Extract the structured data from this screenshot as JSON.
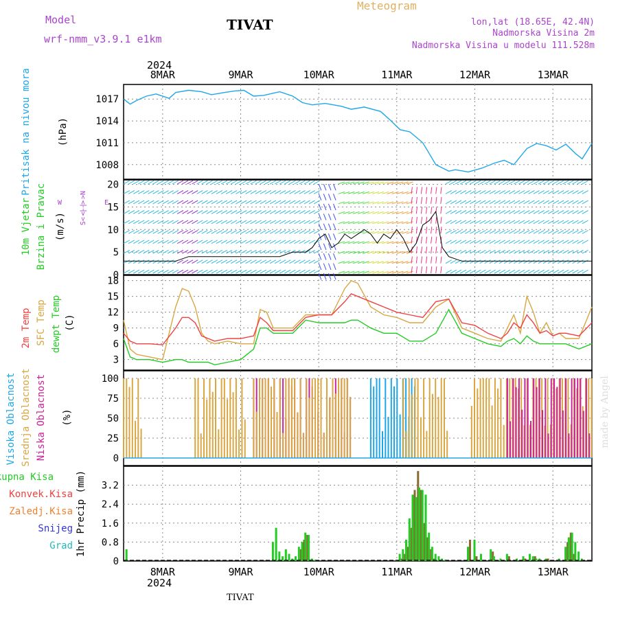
{
  "header": {
    "model_label": "Model",
    "model_name": "wrf-nmm_v3.9.1 e1km",
    "station": "TIVAT",
    "meteogram": "Meteogram",
    "lonlat": "lon,lat (18.65E, 42.4N)",
    "elevation": "Nadmorska Visina 2m",
    "model_elevation": "Nadmorska Visina u modelu 111.528m",
    "footer_station": "TIVAT",
    "credit": "made by Angel"
  },
  "time_axis": {
    "year": "2024",
    "days": [
      "8MAR",
      "9MAR",
      "10MAR",
      "11MAR",
      "12MAR",
      "13MAR"
    ],
    "range_hours": [
      0,
      144
    ]
  },
  "colors": {
    "pressure": "#1ea6e8",
    "temp2m": "#f04040",
    "sfc": "#d9a640",
    "dewpt": "#22cc22",
    "high_cloud": "#1ea6e8",
    "mid_cloud": "#d9a640",
    "low_cloud": "#cc2299",
    "total_precip": "#22cc22",
    "conv_precip": "#f04040",
    "snow": "#3333dd",
    "hail": "#22bbbb",
    "legend_label": "#aa44cc"
  },
  "panels": {
    "pressure": {
      "label_main": "Pritisak na nivou mora",
      "label_unit": "(hPa)",
      "ticks": [
        "1017",
        "1014",
        "1011",
        "1008"
      ]
    },
    "wind": {
      "label_main": "10m Vjetar",
      "label_sub": "Brzina i Pravac",
      "label_unit": "(m/s)",
      "ticks": [
        "20",
        "15",
        "10",
        "5",
        "0"
      ],
      "compass": {
        "w": "W",
        "n": "<-|->N",
        "e": "E",
        "s": "S<-|->"
      }
    },
    "temperature": {
      "label_2m": "2m Temp",
      "label_sfc": "SFC Temp",
      "label_dew": "dewpt Temp",
      "label_unit": "(C)",
      "ticks": [
        "18",
        "15",
        "12",
        "9",
        "6",
        "3"
      ]
    },
    "clouds": {
      "label_high": "Visoka Oblacnost",
      "label_mid": "Srednja Oblacnost",
      "label_low": "Niska Oblacnost",
      "label_unit": "(%)",
      "ticks": [
        "100",
        "75",
        "50",
        "25",
        "0"
      ]
    },
    "precip": {
      "label_unit": "1hr Precip (mm)",
      "ticks": [
        "3.2",
        "2.4",
        "1.6",
        "0.8",
        "0"
      ],
      "legend": [
        "Ukupna Kisa",
        "Konvek.Kisa",
        "Zaledj.Kisa",
        "Snijeg",
        "Grad"
      ]
    }
  },
  "chart_data": [
    {
      "type": "line",
      "name": "pressure",
      "ylabel": "Pritisak na nivou mora (hPa)",
      "ylim": [
        1006,
        1019
      ],
      "x_hours": [
        0,
        2,
        4,
        7,
        10,
        14,
        16,
        20,
        24,
        27,
        31,
        34,
        37,
        40,
        43,
        48,
        52,
        55,
        58,
        62,
        67,
        70,
        74,
        79,
        82,
        85,
        88,
        92,
        94,
        96,
        100,
        102,
        106,
        110,
        114,
        117,
        120,
        124,
        127,
        130,
        133,
        136,
        139,
        141,
        144
      ],
      "series": [
        {
          "values": [
            1017.0,
            1016.3,
            1016.8,
            1017.4,
            1017.7,
            1017.1,
            1017.9,
            1018.2,
            1018.0,
            1017.6,
            1017.9,
            1018.1,
            1018.2,
            1017.4,
            1017.5,
            1018.0,
            1017.4,
            1016.5,
            1016.2,
            1016.4,
            1016.0,
            1015.6,
            1015.9,
            1015.3,
            1014.1,
            1012.8,
            1012.5,
            1011.0,
            1009.5,
            1008.0,
            1007.1,
            1007.3,
            1007.0,
            1007.5,
            1008.2,
            1008.6,
            1008.0,
            1010.2,
            1010.9,
            1010.6,
            1010.0,
            1010.8,
            1009.5,
            1008.8,
            1010.9
          ]
        }
      ]
    },
    {
      "type": "line",
      "name": "wind_speed",
      "ylabel": "10m Vjetar (m/s)",
      "ylim": [
        0,
        21
      ],
      "x_hours": [
        0,
        4,
        8,
        12,
        16,
        20,
        24,
        28,
        32,
        36,
        40,
        44,
        48,
        52,
        56,
        58,
        60,
        62,
        64,
        66,
        68,
        70,
        72,
        74,
        76,
        78,
        80,
        82,
        84,
        86,
        88,
        90,
        92,
        94,
        96,
        98,
        100,
        104,
        108,
        112,
        116,
        120,
        124,
        128,
        132,
        136,
        140,
        144
      ],
      "series": [
        {
          "values": [
            3,
            3,
            3,
            3,
            3,
            4,
            4,
            4,
            4,
            4,
            4,
            4,
            4,
            5,
            5,
            6,
            8,
            9,
            6,
            7,
            9,
            8,
            9,
            10,
            9,
            7,
            9,
            8,
            10,
            8,
            5,
            7,
            11,
            12,
            14,
            6,
            4,
            3,
            3,
            3,
            3,
            3,
            3,
            3,
            3,
            3,
            3,
            3
          ]
        }
      ]
    },
    {
      "type": "line",
      "name": "temperature",
      "ylabel": "Temp (C)",
      "ylim": [
        1,
        19
      ],
      "x_hours": [
        0,
        2,
        4,
        8,
        12,
        16,
        18,
        20,
        22,
        24,
        26,
        28,
        32,
        36,
        40,
        42,
        44,
        46,
        48,
        52,
        56,
        60,
        64,
        68,
        70,
        72,
        76,
        80,
        84,
        88,
        92,
        96,
        100,
        104,
        108,
        112,
        116,
        118,
        120,
        122,
        124,
        126,
        128,
        130,
        132,
        134,
        136,
        140,
        144
      ],
      "series": [
        {
          "name": "2m Temp",
          "values": [
            8,
            6.5,
            6,
            6,
            5.8,
            9,
            11,
            11,
            10,
            7.5,
            7,
            6.5,
            7,
            7,
            7.5,
            11,
            10,
            8.5,
            8.5,
            8.5,
            11,
            11.5,
            11.5,
            14,
            15.5,
            15,
            14,
            13,
            12,
            11.5,
            11,
            14,
            14.5,
            10,
            9.5,
            8,
            7,
            8,
            10,
            9,
            11.5,
            10,
            8,
            8.5,
            7.5,
            8,
            8,
            7.5,
            10
          ]
        },
        {
          "name": "SFC Temp",
          "values": [
            10.5,
            5,
            4,
            3.5,
            3,
            13,
            16.5,
            16,
            13,
            8,
            6.5,
            6,
            6.5,
            6,
            6,
            12.5,
            12,
            9,
            9,
            9,
            11.5,
            11.5,
            11.5,
            16.5,
            18,
            17.5,
            13,
            11.5,
            11,
            10,
            10,
            13,
            14.5,
            9,
            8,
            7,
            6.5,
            9,
            11.5,
            8,
            15,
            12,
            8,
            10,
            7.5,
            8,
            7,
            7,
            13
          ]
        },
        {
          "name": "dewpt Temp",
          "values": [
            7,
            3.5,
            3,
            3,
            2.5,
            3,
            3,
            2.5,
            2.5,
            2.5,
            2.5,
            2,
            2.5,
            3,
            5,
            9,
            9,
            8,
            8,
            8,
            10.5,
            10,
            10,
            10,
            10.5,
            10.5,
            9,
            8,
            8,
            6.5,
            6.5,
            8,
            12.5,
            8,
            7,
            6,
            5.5,
            6.5,
            7,
            6,
            7.5,
            6.5,
            6,
            6,
            6,
            6,
            6,
            5,
            6
          ]
        }
      ]
    },
    {
      "type": "bar",
      "name": "precip_1hr",
      "ylabel": "1hr Precip (mm)",
      "ylim": [
        0,
        4.0
      ],
      "x_hours": [
        1,
        46,
        47,
        48,
        49,
        50,
        51,
        52,
        53,
        54,
        55,
        56,
        57,
        58,
        59,
        60,
        84,
        85,
        86,
        87,
        88,
        89,
        90,
        91,
        92,
        93,
        94,
        95,
        96,
        97,
        98,
        99,
        102,
        106,
        108,
        110,
        113,
        114,
        116,
        118,
        121,
        123,
        125,
        126,
        127,
        128,
        130,
        132,
        134,
        136,
        137,
        138,
        139,
        140,
        141
      ],
      "series": [
        {
          "name": "Ukupna Kisa",
          "values": [
            0.5,
            0.8,
            1.4,
            0.4,
            0.2,
            0.5,
            0.3,
            0.1,
            0.2,
            0.6,
            0.8,
            1.2,
            1.1,
            0.1,
            0.05,
            0,
            0.05,
            0.3,
            0.5,
            0.9,
            1.8,
            2.8,
            2.7,
            3.1,
            3.0,
            2.8,
            1.2,
            0.6,
            0.3,
            0.2,
            0.1,
            0.05,
            0,
            0.6,
            0.9,
            0.3,
            0.5,
            0.2,
            0.1,
            0.3,
            0.1,
            0.2,
            0.3,
            0.2,
            0.1,
            0.1,
            0.1,
            0,
            0.1,
            0.6,
            1.0,
            1.2,
            0.8,
            0.4,
            0.1
          ]
        },
        {
          "name": "Konvek.Kisa",
          "values": [
            0,
            0,
            0,
            0,
            0,
            0,
            0,
            0,
            0,
            0.5,
            0.9,
            1.1,
            0,
            0,
            0,
            0,
            0,
            0.1,
            0.3,
            0.6,
            1.4,
            3.0,
            3.8,
            3.0,
            1.6,
            1.0,
            0.5,
            0.1,
            0,
            0,
            0,
            0,
            0,
            0.9,
            0.2,
            0,
            0.4,
            0,
            0,
            0.2,
            0,
            0.1,
            0,
            0.2,
            0,
            0,
            0.1,
            0,
            0,
            0.8,
            1.2,
            0.3,
            0,
            0,
            0
          ]
        }
      ]
    }
  ]
}
